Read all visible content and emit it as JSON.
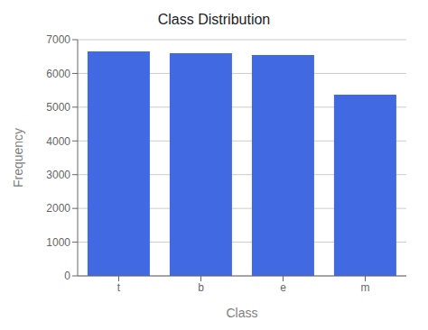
{
  "chart_data": {
    "type": "bar",
    "title": "Class Distribution",
    "xlabel": "Class",
    "ylabel": "Frequency",
    "categories": [
      "t",
      "b",
      "e",
      "m"
    ],
    "values": [
      6650,
      6596,
      6545,
      5368
    ],
    "color": "#4169E1",
    "ylim": [
      0,
      7000
    ],
    "yticks": [
      0,
      1000,
      2000,
      3000,
      4000,
      5000,
      6000,
      7000
    ],
    "grid": true
  }
}
